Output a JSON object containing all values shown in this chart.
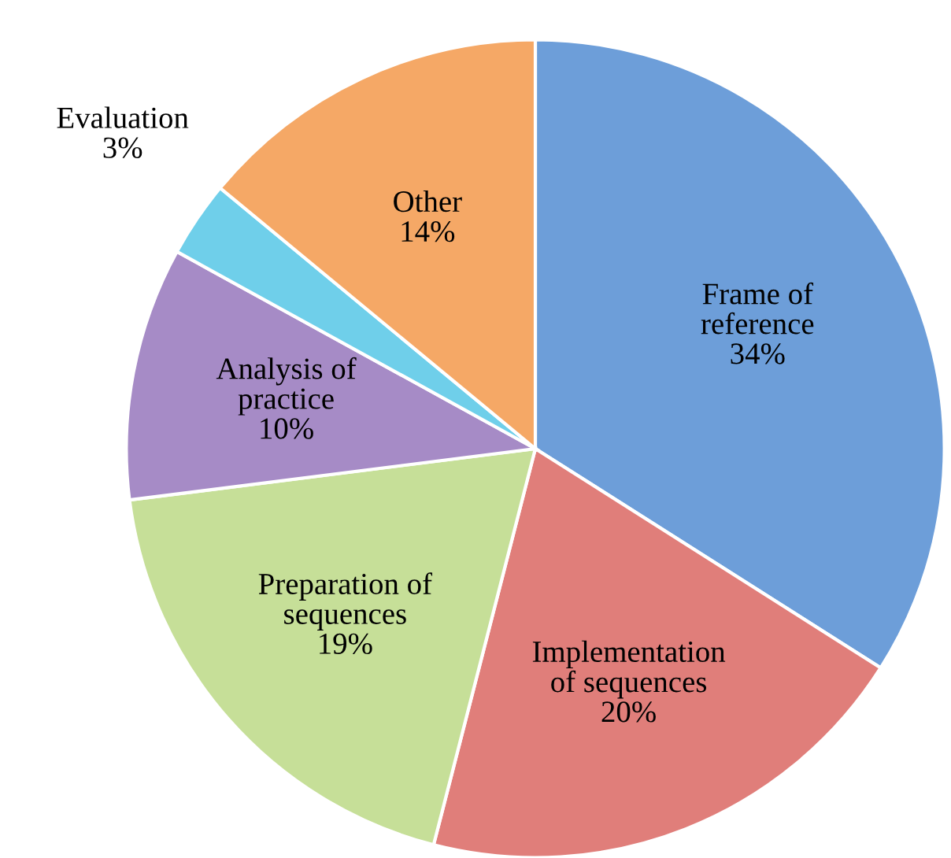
{
  "chart_data": {
    "type": "pie",
    "categories": [
      "Frame of\nreference",
      "Implementation\nof sequences",
      "Preparation of\nsequences",
      "Analysis of\npractice",
      "Evaluation",
      "Other"
    ],
    "values": [
      34,
      20,
      19,
      10,
      3,
      14
    ],
    "value_labels": [
      "34%",
      "20%",
      "19%",
      "10%",
      "3%",
      "14%"
    ],
    "colors": [
      "#6d9ed9",
      "#e07e7a",
      "#c6df98",
      "#a68bc6",
      "#6fcfea",
      "#f5a866"
    ],
    "legend": false
  }
}
